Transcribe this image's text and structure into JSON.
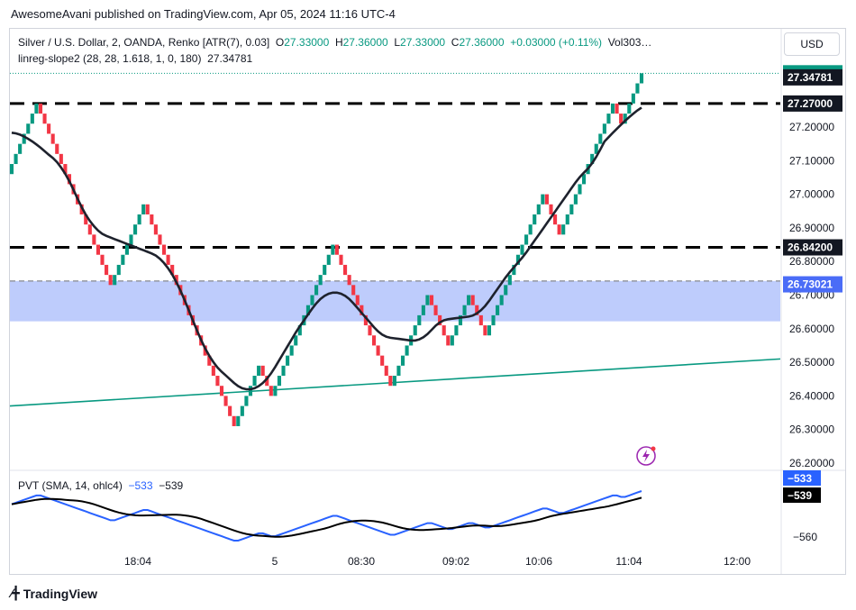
{
  "header": {
    "published": "AwesomeAvani published on TradingView.com, Apr 05, 2024 11:16 UTC-4"
  },
  "legend": {
    "symbol": "Silver / U.S. Dollar, 2, OANDA, Renko [ATR(7), 0.03]",
    "o_label": "O",
    "o": "27.33000",
    "h_label": "H",
    "h": "27.36000",
    "l_label": "L",
    "l": "27.33000",
    "c_label": "C",
    "c": "27.36000",
    "change": "+0.03000 (+0.11%)",
    "vol": "Vol303…",
    "indicator": "linreg-slope2 (28, 28, 1.618, 1, 0, 180)",
    "indicator_value": "27.34781"
  },
  "pvt_legend": {
    "label": "PVT (SMA, 14, ohlc4)",
    "v1": "−533",
    "v2": "−539"
  },
  "currency_button": "USD",
  "brand": "TradingView",
  "chart_data": {
    "type": "renko",
    "title": "Silver / U.S. Dollar, 2, OANDA, Renko [ATR(7), 0.03]",
    "brick_size": 0.03,
    "y_ticks": [
      "26.20000",
      "26.30000",
      "26.40000",
      "26.50000",
      "26.60000",
      "26.70000",
      "26.80000",
      "26.90000",
      "27.00000",
      "27.10000",
      "27.20000"
    ],
    "ylim": [
      26.16,
      27.45
    ],
    "x_ticks": [
      "18:04",
      "5",
      "08:30",
      "09:02",
      "10:06",
      "11:04",
      "12:00"
    ],
    "price_path": [
      27.05,
      27.26,
      27.18,
      26.74,
      26.96,
      26.74,
      26.32,
      26.49,
      26.4,
      26.84,
      26.7,
      26.43,
      26.69,
      26.54,
      26.7,
      26.59,
      26.81,
      27.0,
      26.88,
      27.27,
      27.22,
      27.36
    ],
    "levels": [
      {
        "name": "resistance-high",
        "value": 27.27,
        "label": "27.27000"
      },
      {
        "name": "resistance-mid",
        "value": 26.842,
        "label": "26.84200"
      }
    ],
    "zone": {
      "top": 26.742,
      "bottom": 26.622,
      "label": "26.73021",
      "color": "#4a6cf7"
    },
    "trendline": {
      "from": 26.37,
      "to": 26.51,
      "color": "#089981"
    },
    "last_price": {
      "value": 27.36,
      "label": "27.36000"
    },
    "indicator_value": {
      "value": 27.34781,
      "label": "27.34781"
    },
    "colors": {
      "up": "#089981",
      "down": "#f23645",
      "line": "#1e222d"
    },
    "pvt": {
      "name": "PVT (SMA, 14, ohlc4)",
      "tick": "−560",
      "last_pvt": "−533",
      "last_sma": "−539"
    }
  }
}
